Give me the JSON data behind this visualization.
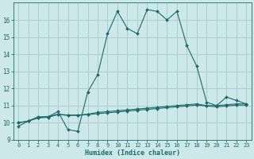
{
  "xlabel": "Humidex (Indice chaleur)",
  "background_color": "#cce8e8",
  "grid_color": "#aacfcf",
  "line_color": "#1a6b6b",
  "xlim": [
    -0.5,
    23.5
  ],
  "ylim": [
    9,
    17
  ],
  "yticks": [
    9,
    10,
    11,
    12,
    13,
    14,
    15,
    16
  ],
  "xticks": [
    0,
    1,
    2,
    3,
    4,
    5,
    6,
    7,
    8,
    9,
    10,
    11,
    12,
    13,
    14,
    15,
    16,
    17,
    18,
    19,
    20,
    21,
    22,
    23
  ],
  "line1_x": [
    0,
    1,
    2,
    3,
    4,
    5,
    6,
    7,
    8,
    9,
    10,
    11,
    12,
    13,
    14,
    15,
    16,
    17,
    18,
    19,
    20,
    21,
    22,
    23
  ],
  "line1_y": [
    9.8,
    10.1,
    10.35,
    10.35,
    10.65,
    9.6,
    9.5,
    11.8,
    12.8,
    15.2,
    16.5,
    15.5,
    15.2,
    16.6,
    16.5,
    16.0,
    16.5,
    14.5,
    13.3,
    11.2,
    11.0,
    11.5,
    11.3,
    11.1
  ],
  "line2_x": [
    0,
    1,
    2,
    3,
    4,
    5,
    6,
    7,
    8,
    9,
    10,
    11,
    12,
    13,
    14,
    15,
    16,
    17,
    18,
    19,
    20,
    21,
    22,
    23
  ],
  "line2_y": [
    10.0,
    10.1,
    10.3,
    10.35,
    10.5,
    10.45,
    10.45,
    10.5,
    10.6,
    10.65,
    10.7,
    10.75,
    10.8,
    10.85,
    10.9,
    10.95,
    11.0,
    11.05,
    11.1,
    11.0,
    11.0,
    11.05,
    11.1,
    11.1
  ],
  "line3_x": [
    0,
    1,
    2,
    3,
    4,
    5,
    6,
    7,
    8,
    9,
    10,
    11,
    12,
    13,
    14,
    15,
    16,
    17,
    18,
    19,
    20,
    21,
    22,
    23
  ],
  "line3_y": [
    10.0,
    10.1,
    10.28,
    10.32,
    10.48,
    10.43,
    10.43,
    10.48,
    10.53,
    10.58,
    10.63,
    10.68,
    10.73,
    10.78,
    10.83,
    10.88,
    10.93,
    10.98,
    11.03,
    10.98,
    10.93,
    10.98,
    11.03,
    11.03
  ],
  "xlabel_fontsize": 6,
  "tick_fontsize": 5,
  "ytick_fontsize": 5.5
}
